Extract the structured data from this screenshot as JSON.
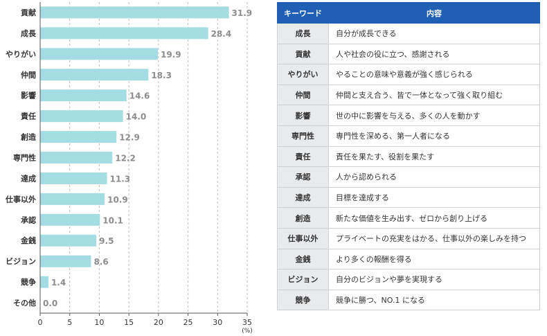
{
  "chart_data": {
    "type": "bar",
    "orientation": "horizontal",
    "categories": [
      "貢献",
      "成長",
      "やりがい",
      "仲間",
      "影響",
      "責任",
      "創造",
      "専門性",
      "達成",
      "仕事以外",
      "承認",
      "金銭",
      "ビジョン",
      "競争",
      "その他"
    ],
    "values": [
      31.9,
      28.4,
      19.9,
      18.3,
      14.6,
      14.0,
      12.9,
      12.2,
      11.3,
      10.9,
      10.1,
      9.5,
      8.6,
      1.4,
      0.0
    ],
    "value_labels": [
      "31.9",
      "28.4",
      "19.9",
      "18.3",
      "14.6",
      "14.0",
      "12.9",
      "12.2",
      "11.3",
      "10.9",
      "10.1",
      "9.5",
      "8.6",
      "1.4",
      "0.0"
    ],
    "xlim": [
      0,
      35
    ],
    "xticks": [
      "0",
      "5",
      "10",
      "15",
      "20",
      "25",
      "30",
      "35"
    ],
    "xunit": "(%)",
    "bar_color": "#a4dce3",
    "grid": "dashed-vertical"
  },
  "table": {
    "headers": [
      "キーワード",
      "内容"
    ],
    "header_color": "#1f5fb4",
    "rows": [
      {
        "keyword": "成長",
        "content": "自分が成長できる"
      },
      {
        "keyword": "貢献",
        "content": "人や社会の役に立つ、感謝される"
      },
      {
        "keyword": "やりがい",
        "content": "やることの意味や意義が強く感じられる"
      },
      {
        "keyword": "仲間",
        "content": "仲間と支え合う、皆で一体となって強く取り組む"
      },
      {
        "keyword": "影響",
        "content": "世の中に影響を与える、多くの人を動かす"
      },
      {
        "keyword": "専門性",
        "content": "専門性を深める、第一人者になる"
      },
      {
        "keyword": "責任",
        "content": "責任を果たす、役割を果たす"
      },
      {
        "keyword": "承認",
        "content": "人から認められる"
      },
      {
        "keyword": "達成",
        "content": "目標を達成する"
      },
      {
        "keyword": "創造",
        "content": "新たな価値を生み出す、ゼロから創り上げる"
      },
      {
        "keyword": "仕事以外",
        "content": "プライベートの充実をはかる、仕事以外の楽しみを持つ"
      },
      {
        "keyword": "金銭",
        "content": "より多くの報酬を得る"
      },
      {
        "keyword": "ビジョン",
        "content": "自分のビジョンや夢を実現する"
      },
      {
        "keyword": "競争",
        "content": "競争に勝つ、NO.1 になる"
      }
    ]
  }
}
